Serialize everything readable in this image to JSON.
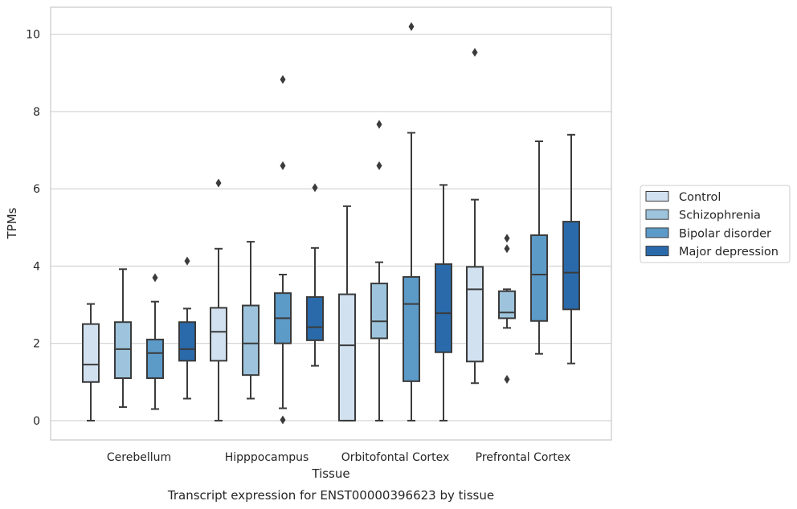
{
  "chart_data": {
    "type": "box",
    "title": "",
    "xlabel": "Tissue",
    "ylabel": "TPMs",
    "caption": "Transcript expression for ENST00000396623 by tissue",
    "ylim": [
      -0.5,
      10.7
    ],
    "yticks": [
      0,
      2,
      4,
      6,
      8,
      10
    ],
    "grid": "horizontal",
    "legend_position": "right",
    "categories": [
      "Cerebellum",
      "Hipppocampus",
      "Orbitofontal Cortex",
      "Prefrontal Cortex"
    ],
    "series": [
      {
        "name": "Control",
        "color": "#d1e1f0",
        "boxes": [
          {
            "whislo": 0.0,
            "q1": 1.0,
            "med": 1.45,
            "q3": 2.5,
            "whishi": 3.02,
            "fliers": []
          },
          {
            "whislo": 0.0,
            "q1": 1.55,
            "med": 2.3,
            "q3": 2.92,
            "whishi": 4.45,
            "fliers": [
              6.15
            ]
          },
          {
            "whislo": 0.0,
            "q1": 0.0,
            "med": 1.95,
            "q3": 3.27,
            "whishi": 5.55,
            "fliers": []
          },
          {
            "whislo": 0.97,
            "q1": 1.53,
            "med": 3.4,
            "q3": 3.98,
            "whishi": 5.72,
            "fliers": [
              9.53
            ]
          }
        ]
      },
      {
        "name": "Schizophrenia",
        "color": "#9dc4dc",
        "boxes": [
          {
            "whislo": 0.35,
            "q1": 1.1,
            "med": 1.85,
            "q3": 2.55,
            "whishi": 3.92,
            "fliers": []
          },
          {
            "whislo": 0.57,
            "q1": 1.18,
            "med": 2.0,
            "q3": 2.98,
            "whishi": 4.63,
            "fliers": []
          },
          {
            "whislo": 0.0,
            "q1": 2.13,
            "med": 2.57,
            "q3": 3.55,
            "whishi": 4.1,
            "fliers": [
              6.6,
              7.67
            ]
          },
          {
            "whislo": 2.4,
            "q1": 2.65,
            "med": 2.8,
            "q3": 3.35,
            "whishi": 3.4,
            "fliers": [
              1.07,
              4.45,
              4.72
            ]
          }
        ]
      },
      {
        "name": "Bipolar disorder",
        "color": "#5c9ac8",
        "boxes": [
          {
            "whislo": 0.3,
            "q1": 1.1,
            "med": 1.75,
            "q3": 2.1,
            "whishi": 3.08,
            "fliers": [
              3.7
            ]
          },
          {
            "whislo": 0.32,
            "q1": 2.0,
            "med": 2.65,
            "q3": 3.3,
            "whishi": 3.78,
            "fliers": [
              0.02,
              6.6,
              8.83
            ]
          },
          {
            "whislo": 0.0,
            "q1": 1.02,
            "med": 3.02,
            "q3": 3.72,
            "whishi": 7.45,
            "fliers": [
              10.2
            ]
          },
          {
            "whislo": 1.73,
            "q1": 2.58,
            "med": 3.78,
            "q3": 4.8,
            "whishi": 7.23,
            "fliers": []
          }
        ]
      },
      {
        "name": "Major depression",
        "color": "#2a6aab",
        "boxes": [
          {
            "whislo": 0.57,
            "q1": 1.55,
            "med": 1.85,
            "q3": 2.55,
            "whishi": 2.9,
            "fliers": [
              4.13
            ]
          },
          {
            "whislo": 1.42,
            "q1": 2.08,
            "med": 2.42,
            "q3": 3.2,
            "whishi": 4.47,
            "fliers": [
              6.03
            ]
          },
          {
            "whislo": 0.0,
            "q1": 1.77,
            "med": 2.78,
            "q3": 4.05,
            "whishi": 6.1,
            "fliers": []
          },
          {
            "whislo": 1.48,
            "q1": 2.88,
            "med": 3.83,
            "q3": 5.15,
            "whishi": 7.4,
            "fliers": []
          }
        ]
      }
    ]
  }
}
